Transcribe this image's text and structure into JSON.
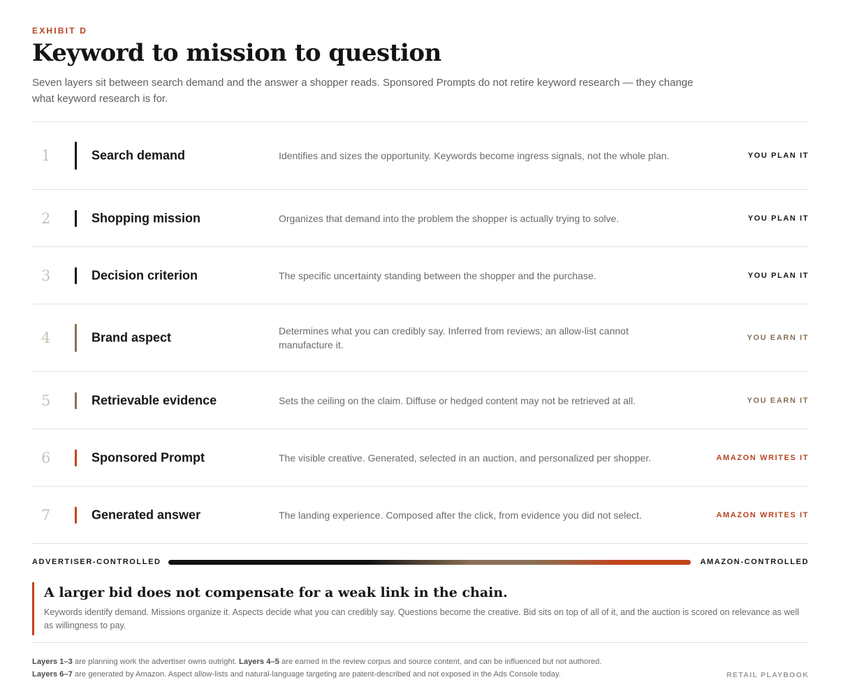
{
  "eyebrow": "EXHIBIT D",
  "title": "Keyword to mission to question",
  "subtitle": "Seven layers sit between search demand and the answer a shopper reads. Sponsored Prompts do not retire keyword research — they change what keyword research is for.",
  "layers": [
    {
      "num": "1",
      "name": "Search demand",
      "desc": "Identifies and sizes the opportunity. Keywords become ingress signals, not the whole plan.",
      "tag": "YOU PLAN IT",
      "group": "plan"
    },
    {
      "num": "2",
      "name": "Shopping mission",
      "desc": "Organizes that demand into the problem the shopper is actually trying to solve.",
      "tag": "YOU PLAN IT",
      "group": "plan"
    },
    {
      "num": "3",
      "name": "Decision criterion",
      "desc": "The specific uncertainty standing between the shopper and the purchase.",
      "tag": "YOU PLAN IT",
      "group": "plan"
    },
    {
      "num": "4",
      "name": "Brand aspect",
      "desc": "Determines what you can credibly say. Inferred from reviews; an allow-list cannot manufacture it.",
      "tag": "YOU EARN IT",
      "group": "earn"
    },
    {
      "num": "5",
      "name": "Retrievable evidence",
      "desc": "Sets the ceiling on the claim. Diffuse or hedged content may not be retrieved at all.",
      "tag": "YOU EARN IT",
      "group": "earn"
    },
    {
      "num": "6",
      "name": "Sponsored Prompt",
      "desc": "The visible creative. Generated, selected in an auction, and personalized per shopper.",
      "tag": "AMAZON WRITES IT",
      "group": "amazon"
    },
    {
      "num": "7",
      "name": "Generated answer",
      "desc": "The landing experience. Composed after the click, from evidence you did not select.",
      "tag": "AMAZON WRITES IT",
      "group": "amazon"
    }
  ],
  "spectrum": {
    "left": "ADVERTISER-CONTROLLED",
    "right": "AMAZON-CONTROLLED"
  },
  "callout": {
    "title": "A larger bid does not compensate for a weak link in the chain.",
    "body": "Keywords identify demand. Missions organize it. Aspects decide what you can credibly say. Questions become the creative. Bid sits on top of all of it, and the auction is scored on relevance as well as willingness to pay."
  },
  "footnote": {
    "line1_bold": "Layers 1–3",
    "line1_text": " are planning work the advertiser owns outright. ",
    "line1_bold2": "Layers 4–5",
    "line1_text2": " are earned in the review corpus and source content, and can be influenced but not authored.",
    "line2_bold": "Layers 6–7",
    "line2_text": " are generated by Amazon. Aspect allow-lists and natural-language targeting are patent-described and not exposed in the Ads Console today."
  },
  "brand": "RETAIL PLAYBOOK",
  "colors": {
    "plan": "#111111",
    "earn": "#8a6f55",
    "amazon": "#c2441b"
  }
}
